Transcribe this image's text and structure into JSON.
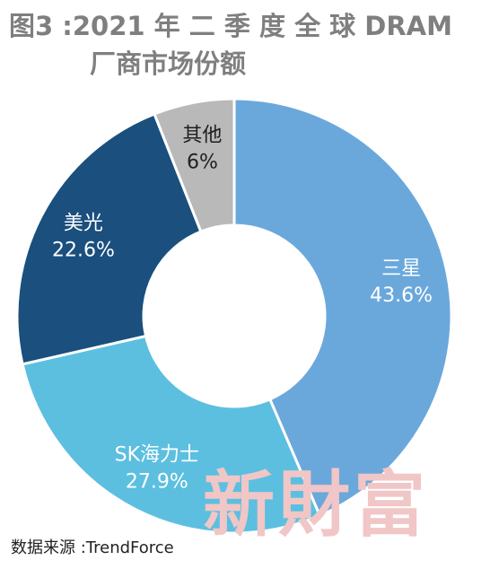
{
  "title_line1": "图3 :2021 年 二 季 度 全 球 DRAM",
  "title_line2": "厂商市场份额",
  "source": "数据来源 :TrendForce",
  "watermark_text": "新財富",
  "chart_data": {
    "type": "pie",
    "variant": "donut",
    "title": "图3 :2021 年 二 季 度 全 球 DRAM 厂商市场份额",
    "slices": [
      {
        "label": "三星",
        "value": 43.6,
        "value_label": "43.6%",
        "color": "#6aa8dc",
        "label_color": "#ffffff"
      },
      {
        "label": "SK海力士",
        "value": 27.9,
        "value_label": "27.9%",
        "color": "#5cbfe0",
        "label_color": "#ffffff"
      },
      {
        "label": "美光",
        "value": 22.6,
        "value_label": "22.6%",
        "color": "#1a4f7e",
        "label_color": "#ffffff"
      },
      {
        "label": "其他",
        "value": 6,
        "value_label": "6%",
        "color": "#b9b9b9",
        "label_color": "#1f1f1f"
      }
    ],
    "start_angle": "12 o'clock",
    "direction": "clockwise",
    "legend": "none"
  }
}
